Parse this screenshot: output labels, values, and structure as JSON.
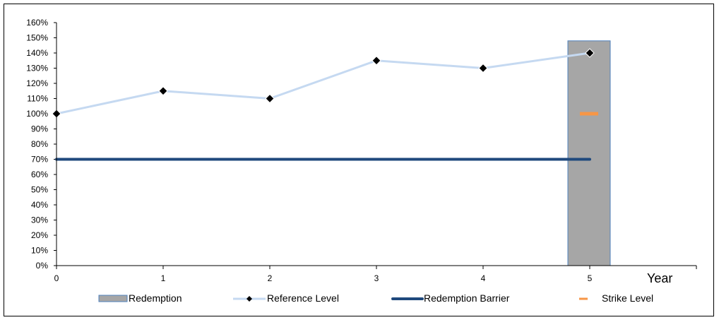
{
  "chart_data": {
    "type": "line",
    "x": [
      0,
      1,
      2,
      3,
      4,
      5
    ],
    "xlabel": "Year",
    "ylim": [
      0,
      160
    ],
    "y_ticks": [
      "0%",
      "10%",
      "20%",
      "30%",
      "40%",
      "50%",
      "60%",
      "70%",
      "80%",
      "90%",
      "100%",
      "110%",
      "120%",
      "130%",
      "140%",
      "150%",
      "160%"
    ],
    "series": [
      {
        "name": "Redemption",
        "kind": "bar",
        "x": 5,
        "value": 148,
        "color": "#a6a6a6",
        "edge_color": "#4f81bd"
      },
      {
        "name": "Reference Level",
        "kind": "line",
        "values": [
          100,
          115,
          110,
          135,
          130,
          140
        ],
        "color": "#c5d9f1",
        "marker_color": "#000000"
      },
      {
        "name": "Redemption Barrier",
        "kind": "line",
        "values": [
          70,
          70,
          70,
          70,
          70,
          70
        ],
        "color": "#1f497d"
      },
      {
        "name": "Strike Level",
        "kind": "marker",
        "x": 5,
        "value": 100,
        "color": "#f79646"
      }
    ],
    "grid": false,
    "legend": "bottom"
  }
}
